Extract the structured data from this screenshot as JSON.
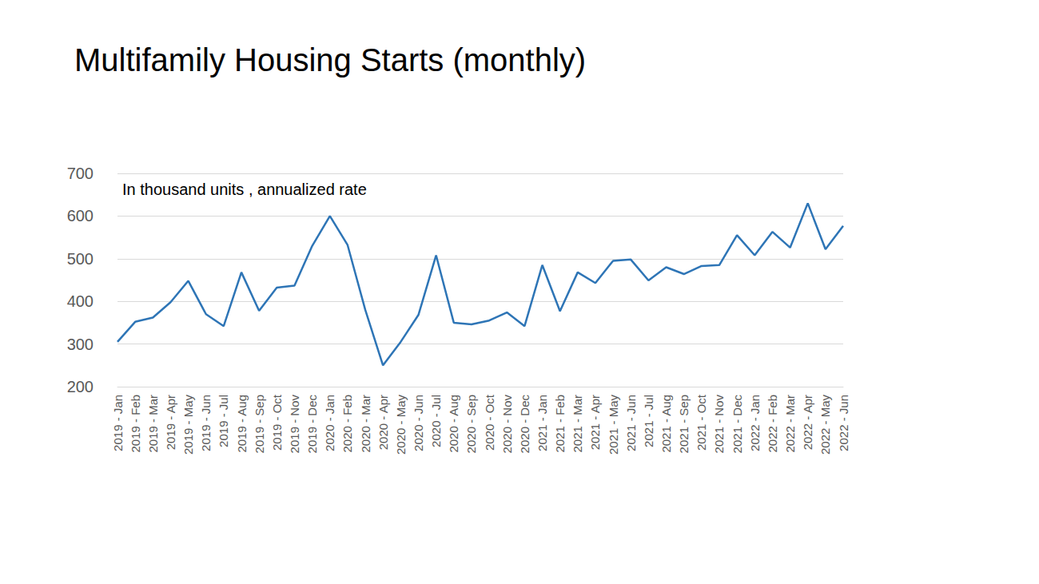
{
  "chart_data": {
    "type": "line",
    "title": "Multifamily Housing Starts (monthly)",
    "annotation": "In thousand units , annualized rate",
    "categories": [
      "2019 - Jan",
      "2019 - Feb",
      "2019 - Mar",
      "2019 - Apr",
      "2019 - May",
      "2019 - Jun",
      "2019 - Jul",
      "2019 - Aug",
      "2019 - Sep",
      "2019 - Oct",
      "2019 - Nov",
      "2019 - Dec",
      "2020 - Jan",
      "2020 - Feb",
      "2020 - Mar",
      "2020 - Apr",
      "2020 - May",
      "2020 - Jun",
      "2020 - Jul",
      "2020 - Aug",
      "2020 - Sep",
      "2020 - Oct",
      "2020 - Nov",
      "2020 - Dec",
      "2021 - Jan",
      "2021 - Feb",
      "2021 - Mar",
      "2021 - Apr",
      "2021 - May",
      "2021 - Jun",
      "2021 - Jul",
      "2021 - Aug",
      "2021 - Sep",
      "2021 - Oct",
      "2021 - Nov",
      "2021 - Dec",
      "2022 - Jan",
      "2022 - Feb",
      "2022 - Mar",
      "2022 - Apr",
      "2022 - May",
      "2022 - Jun"
    ],
    "values": [
      305,
      352,
      362,
      398,
      448,
      370,
      342,
      468,
      378,
      432,
      437,
      530,
      600,
      532,
      380,
      250,
      305,
      368,
      508,
      350,
      346,
      355,
      374,
      342,
      485,
      377,
      468,
      443,
      495,
      498,
      449,
      480,
      464,
      483,
      485,
      555,
      508,
      563,
      526,
      630,
      522,
      577
    ],
    "color": "#2e75b6",
    "ylim": [
      200,
      700
    ],
    "yticks": [
      200,
      300,
      400,
      500,
      600,
      700
    ],
    "grid": true
  }
}
